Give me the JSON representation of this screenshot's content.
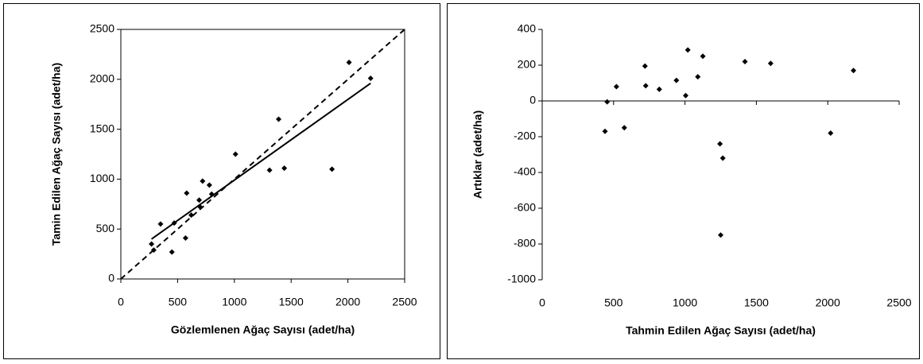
{
  "chart_data": [
    {
      "type": "scatter",
      "x_label": "Gözlemlenen Ağaç Sayısı (adet/ha)",
      "y_label": "Tamin Edilen Ağaç Sayısı (adet/ha)",
      "xlim": [
        0,
        2500
      ],
      "ylim": [
        0,
        2500
      ],
      "xticks": [
        0,
        500,
        1000,
        1500,
        2000,
        2500
      ],
      "yticks": [
        0,
        500,
        1000,
        1500,
        2000,
        2500
      ],
      "color": "#000000",
      "frame": true,
      "series": [
        {
          "color": "#000000",
          "x": [
            270,
            290,
            350,
            450,
            470,
            570,
            580,
            620,
            690,
            700,
            720,
            780,
            800,
            1010,
            1310,
            1390,
            1440,
            1860,
            2010,
            2200
          ],
          "values": [
            350,
            290,
            550,
            270,
            560,
            410,
            860,
            640,
            790,
            720,
            980,
            940,
            850,
            1250,
            1090,
            1600,
            1110,
            1100,
            2170,
            2010
          ]
        }
      ],
      "lines": [
        {
          "x": [
            270,
            2200
          ],
          "values": [
            400,
            1960
          ],
          "style": "solid"
        },
        {
          "x": [
            0,
            2500
          ],
          "values": [
            0,
            2500
          ],
          "style": "dashed"
        }
      ]
    },
    {
      "type": "scatter",
      "x_label": "Tahmin Edilen Ağaç Sayısı (adet/ha)",
      "y_label": "Artıklar (adet/ha)",
      "xlim": [
        0,
        2500
      ],
      "ylim": [
        -1000,
        400
      ],
      "xticks": [
        0,
        500,
        1000,
        1500,
        2000,
        2500
      ],
      "yticks": [
        -1000,
        -800,
        -600,
        -400,
        -200,
        0,
        200,
        400
      ],
      "color": "#000000",
      "frame": false,
      "series": [
        {
          "color": "#000000",
          "x": [
            440,
            455,
            520,
            575,
            720,
            725,
            820,
            940,
            1020,
            1005,
            1090,
            1125,
            1245,
            1265,
            1250,
            1420,
            1600,
            2020,
            2180
          ],
          "values": [
            -170,
            -5,
            80,
            -150,
            195,
            85,
            65,
            115,
            285,
            30,
            135,
            250,
            -240,
            -320,
            -750,
            220,
            210,
            -180,
            170
          ]
        }
      ],
      "lines": []
    }
  ]
}
